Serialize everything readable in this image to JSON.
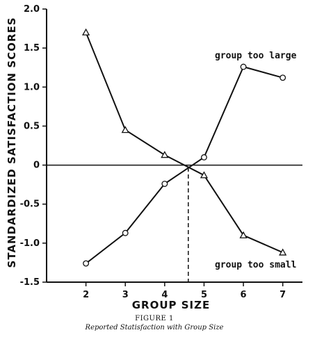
{
  "chart_data": {
    "type": "line",
    "title": "",
    "xlabel": "GROUP SIZE",
    "ylabel": "STANDARDIZED SATISFACTION SCORES",
    "x": [
      2,
      3,
      4,
      5,
      6,
      7
    ],
    "x_ticks": [
      "2",
      "3",
      "4",
      "5",
      "6",
      "7"
    ],
    "xlim": [
      1,
      7.5
    ],
    "y_ticks": [
      "2.0",
      "1.5",
      "1.0",
      "0.5",
      "0",
      "-0.5",
      "-1.0",
      "-1.5"
    ],
    "ylim": [
      -1.5,
      2.0
    ],
    "grid": false,
    "zero_line": true,
    "series": [
      {
        "name": "group too large",
        "marker": "circle",
        "values": [
          -1.26,
          -0.87,
          -0.24,
          0.1,
          1.26,
          1.12
        ]
      },
      {
        "name": "group too small",
        "marker": "triangle",
        "values": [
          1.7,
          0.45,
          0.13,
          -0.13,
          -0.9,
          -1.12
        ]
      }
    ],
    "crossover": {
      "x": 4.6,
      "y": -0.03
    },
    "figure_number": "FIGURE 1",
    "caption": "Reported Statisfaction with Group Size"
  }
}
